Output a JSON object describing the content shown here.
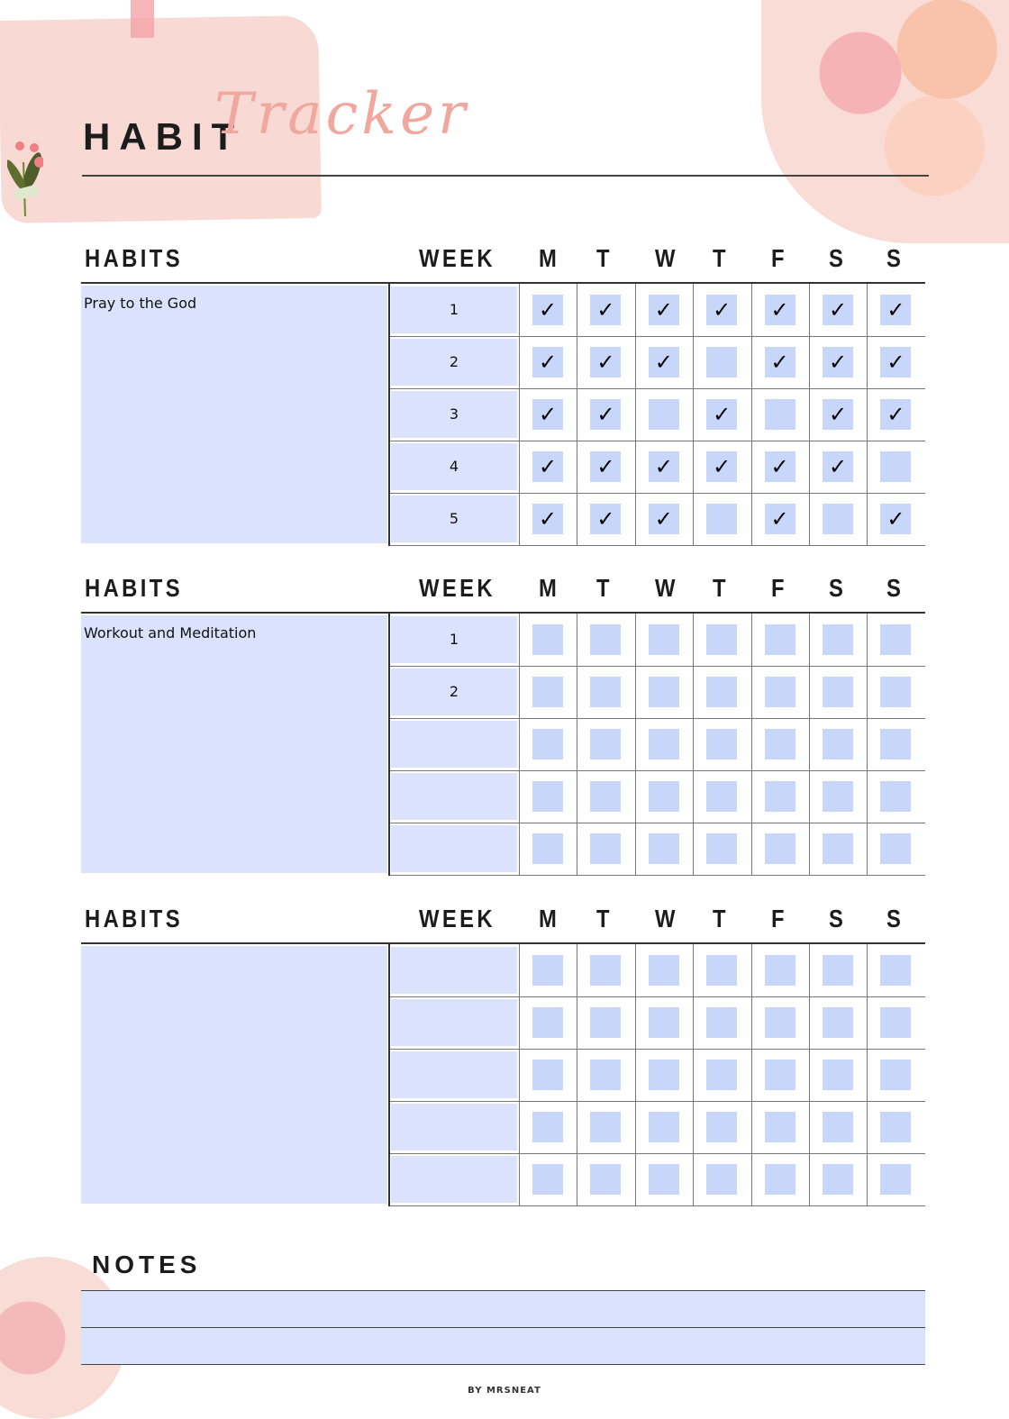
{
  "title": {
    "main": "HABIT",
    "script": "Tracker"
  },
  "columns": {
    "habits": "HABITS",
    "week": "WEEK",
    "days": [
      "M",
      "T",
      "W",
      "T",
      "F",
      "S",
      "S"
    ]
  },
  "check_glyph": "✓",
  "colors": {
    "accent_pink": "#f0a89e",
    "cell_fill": "#dae2fc",
    "box_fill": "#c8d6fa"
  },
  "tables": [
    {
      "habit": "Pray to the God",
      "weeks": [
        "1",
        "2",
        "3",
        "4",
        "5"
      ],
      "checks": [
        [
          1,
          1,
          1,
          1,
          1,
          1,
          1
        ],
        [
          1,
          1,
          1,
          0,
          1,
          1,
          1
        ],
        [
          1,
          1,
          0,
          1,
          0,
          1,
          1
        ],
        [
          1,
          1,
          1,
          1,
          1,
          1,
          0
        ],
        [
          1,
          1,
          1,
          0,
          1,
          0,
          1
        ]
      ]
    },
    {
      "habit": "Workout and Meditation",
      "weeks": [
        "1",
        "2",
        "",
        "",
        ""
      ],
      "checks": [
        [
          0,
          0,
          0,
          0,
          0,
          0,
          0
        ],
        [
          0,
          0,
          0,
          0,
          0,
          0,
          0
        ],
        [
          0,
          0,
          0,
          0,
          0,
          0,
          0
        ],
        [
          0,
          0,
          0,
          0,
          0,
          0,
          0
        ],
        [
          0,
          0,
          0,
          0,
          0,
          0,
          0
        ]
      ]
    },
    {
      "habit": "",
      "weeks": [
        "",
        "",
        "",
        "",
        ""
      ],
      "checks": [
        [
          0,
          0,
          0,
          0,
          0,
          0,
          0
        ],
        [
          0,
          0,
          0,
          0,
          0,
          0,
          0
        ],
        [
          0,
          0,
          0,
          0,
          0,
          0,
          0
        ],
        [
          0,
          0,
          0,
          0,
          0,
          0,
          0
        ],
        [
          0,
          0,
          0,
          0,
          0,
          0,
          0
        ]
      ]
    }
  ],
  "notes": {
    "title": "NOTES",
    "lines": [
      "",
      ""
    ]
  },
  "footer": "BY MRSNEAT"
}
